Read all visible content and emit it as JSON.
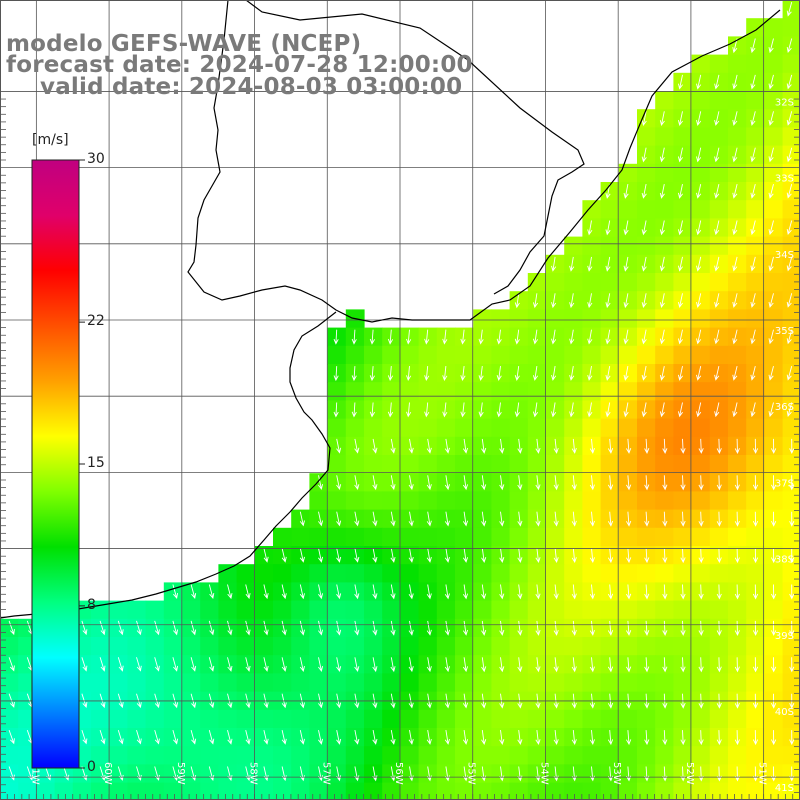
{
  "title": {
    "line1": "modelo GEFS-WAVE (NCEP)",
    "line2": "forecast date: 2024-07-28 12:00:00",
    "line3": "valid date: 2024-08-03 03:00:00"
  },
  "colorbar": {
    "unit": "[m/s]",
    "min": 0,
    "max": 30,
    "ticks": [
      {
        "value": 30,
        "label": "30"
      },
      {
        "value": 22,
        "label": "22"
      },
      {
        "value": 15,
        "label": "15"
      },
      {
        "value": 8,
        "label": "8"
      },
      {
        "value": 0,
        "label": "0"
      }
    ],
    "stops": [
      "#0000ff",
      "#0080ff",
      "#00ffff",
      "#00ff80",
      "#00e000",
      "#80ff00",
      "#ffff00",
      "#ffa000",
      "#ff5000",
      "#ff0000",
      "#e0006a",
      "#c00080"
    ]
  },
  "map": {
    "lon_range": [
      -61.5,
      -50.5
    ],
    "lat_range": [
      -41.3,
      -30.8
    ],
    "lat_labels": [
      {
        "value": -32,
        "label": "32S"
      },
      {
        "value": -33,
        "label": "33S"
      },
      {
        "value": -34,
        "label": "34S"
      },
      {
        "value": -35,
        "label": "35S"
      },
      {
        "value": -36,
        "label": "36S"
      },
      {
        "value": -37,
        "label": "37S"
      },
      {
        "value": -38,
        "label": "38S"
      },
      {
        "value": -39,
        "label": "39S"
      },
      {
        "value": -40,
        "label": "40S"
      },
      {
        "value": -41,
        "label": "41S"
      }
    ],
    "lon_labels": [
      {
        "value": -61,
        "label": "61W"
      },
      {
        "value": -60,
        "label": "60W"
      },
      {
        "value": -59,
        "label": "59W"
      },
      {
        "value": -58,
        "label": "58W"
      },
      {
        "value": -57,
        "label": "57W"
      },
      {
        "value": -56,
        "label": "56W"
      },
      {
        "value": -55,
        "label": "55W"
      },
      {
        "value": -54,
        "label": "54W"
      },
      {
        "value": -53,
        "label": "53W"
      },
      {
        "value": -52,
        "label": "52W"
      },
      {
        "value": -51,
        "label": "51W"
      }
    ],
    "colors": {
      "land": "#ffffff",
      "grid": "#555555",
      "coast": "#000000",
      "arrow": "#ffffff"
    }
  }
}
